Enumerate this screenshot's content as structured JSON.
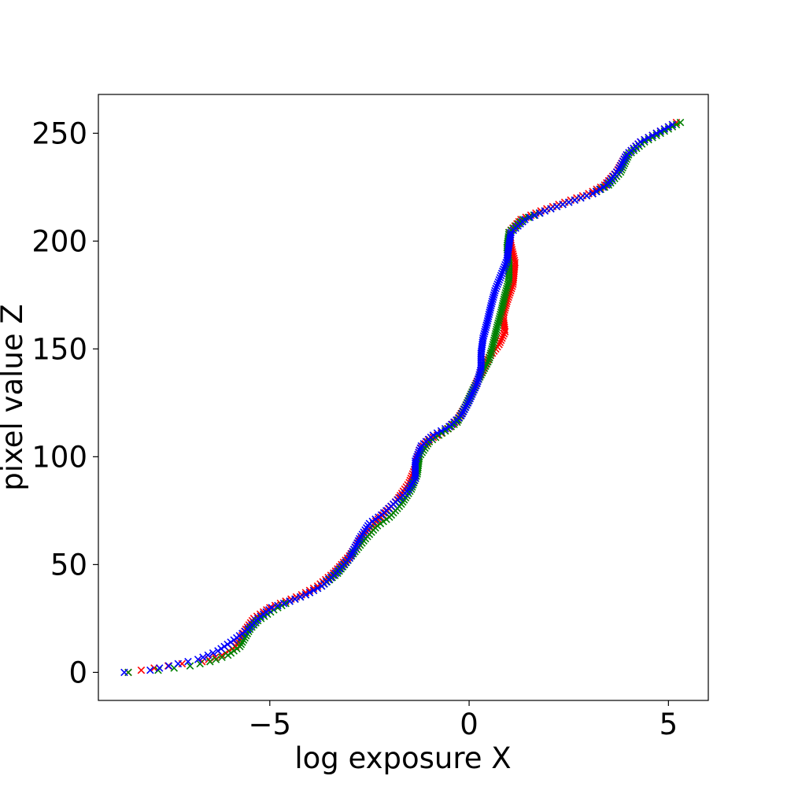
{
  "chart_data": {
    "type": "scatter",
    "title": "",
    "xlabel": "log exposure X",
    "ylabel": "pixel value Z",
    "xlim": [
      -9.3,
      6.0
    ],
    "ylim": [
      -13,
      268
    ],
    "xticks": [
      {
        "value": -5,
        "label": "−5"
      },
      {
        "value": 0,
        "label": "0"
      },
      {
        "value": 5,
        "label": "5"
      }
    ],
    "yticks": [
      {
        "value": 0,
        "label": "0"
      },
      {
        "value": 50,
        "label": "50"
      },
      {
        "value": 100,
        "label": "100"
      },
      {
        "value": 150,
        "label": "150"
      },
      {
        "value": 200,
        "label": "200"
      },
      {
        "value": 250,
        "label": "250"
      }
    ],
    "grid": false,
    "marker": "x",
    "series": [
      {
        "color": "#ff0000",
        "points": [
          [
            -8.55,
            0
          ],
          [
            -7.9,
            2
          ],
          [
            -7.2,
            4
          ],
          [
            -6.7,
            5
          ],
          [
            -6.2,
            8
          ],
          [
            -5.85,
            12
          ],
          [
            -5.6,
            20
          ],
          [
            -5.4,
            25
          ],
          [
            -5.0,
            30
          ],
          [
            -4.6,
            33
          ],
          [
            -4.2,
            36
          ],
          [
            -3.8,
            40
          ],
          [
            -3.4,
            46
          ],
          [
            -3.0,
            54
          ],
          [
            -2.7,
            62
          ],
          [
            -2.4,
            69
          ],
          [
            -2.1,
            74
          ],
          [
            -1.8,
            80
          ],
          [
            -1.5,
            88
          ],
          [
            -1.35,
            95
          ],
          [
            -1.25,
            103
          ],
          [
            -1.0,
            108
          ],
          [
            -0.6,
            112
          ],
          [
            -0.3,
            117
          ],
          [
            -0.1,
            123
          ],
          [
            0.1,
            131
          ],
          [
            0.3,
            139
          ],
          [
            0.5,
            146
          ],
          [
            0.75,
            152
          ],
          [
            0.9,
            158
          ],
          [
            0.85,
            165
          ],
          [
            0.95,
            172
          ],
          [
            1.1,
            180
          ],
          [
            1.15,
            190
          ],
          [
            1.05,
            198
          ],
          [
            1.0,
            204
          ],
          [
            1.3,
            210
          ],
          [
            1.8,
            214
          ],
          [
            2.4,
            218
          ],
          [
            3.0,
            222
          ],
          [
            3.4,
            226
          ],
          [
            3.7,
            232
          ],
          [
            3.95,
            240
          ],
          [
            4.3,
            246
          ],
          [
            4.7,
            250
          ],
          [
            5.2,
            255
          ]
        ]
      },
      {
        "color": "#008000",
        "points": [
          [
            -8.55,
            0
          ],
          [
            -7.8,
            1
          ],
          [
            -7.0,
            3
          ],
          [
            -6.5,
            5
          ],
          [
            -6.05,
            8
          ],
          [
            -5.75,
            12
          ],
          [
            -5.5,
            20
          ],
          [
            -5.3,
            24
          ],
          [
            -4.9,
            29
          ],
          [
            -4.5,
            33
          ],
          [
            -4.1,
            36
          ],
          [
            -3.7,
            40
          ],
          [
            -3.3,
            46
          ],
          [
            -2.95,
            54
          ],
          [
            -2.6,
            62
          ],
          [
            -2.3,
            68
          ],
          [
            -2.0,
            72
          ],
          [
            -1.7,
            78
          ],
          [
            -1.45,
            85
          ],
          [
            -1.3,
            92
          ],
          [
            -1.25,
            100
          ],
          [
            -1.0,
            107
          ],
          [
            -0.6,
            112
          ],
          [
            -0.3,
            116
          ],
          [
            -0.1,
            123
          ],
          [
            0.1,
            131
          ],
          [
            0.3,
            138
          ],
          [
            0.5,
            145
          ],
          [
            0.6,
            152
          ],
          [
            0.7,
            160
          ],
          [
            0.8,
            167
          ],
          [
            0.9,
            175
          ],
          [
            1.0,
            182
          ],
          [
            1.0,
            190
          ],
          [
            0.95,
            197
          ],
          [
            1.0,
            204
          ],
          [
            1.35,
            210
          ],
          [
            1.9,
            214
          ],
          [
            2.5,
            218
          ],
          [
            3.1,
            222
          ],
          [
            3.5,
            226
          ],
          [
            3.8,
            232
          ],
          [
            4.0,
            240
          ],
          [
            4.4,
            246
          ],
          [
            4.8,
            250
          ],
          [
            5.3,
            255
          ]
        ]
      },
      {
        "color": "#0000ff",
        "points": [
          [
            -8.65,
            0
          ],
          [
            -8.0,
            1
          ],
          [
            -7.3,
            4
          ],
          [
            -6.8,
            6
          ],
          [
            -6.3,
            10
          ],
          [
            -5.9,
            15
          ],
          [
            -5.55,
            20
          ],
          [
            -5.3,
            25
          ],
          [
            -4.95,
            30
          ],
          [
            -4.5,
            33
          ],
          [
            -4.1,
            36
          ],
          [
            -3.7,
            40
          ],
          [
            -3.35,
            46
          ],
          [
            -3.0,
            53
          ],
          [
            -2.75,
            62
          ],
          [
            -2.5,
            69
          ],
          [
            -2.2,
            73
          ],
          [
            -1.9,
            78
          ],
          [
            -1.55,
            84
          ],
          [
            -1.35,
            90
          ],
          [
            -1.35,
            98
          ],
          [
            -1.2,
            105
          ],
          [
            -0.9,
            110
          ],
          [
            -0.5,
            114
          ],
          [
            -0.2,
            119
          ],
          [
            0.0,
            126
          ],
          [
            0.2,
            134
          ],
          [
            0.3,
            141
          ],
          [
            0.3,
            148
          ],
          [
            0.35,
            155
          ],
          [
            0.45,
            162
          ],
          [
            0.55,
            170
          ],
          [
            0.65,
            177
          ],
          [
            0.8,
            184
          ],
          [
            0.95,
            191
          ],
          [
            1.0,
            198
          ],
          [
            1.05,
            204
          ],
          [
            1.4,
            210
          ],
          [
            1.9,
            214
          ],
          [
            2.5,
            218
          ],
          [
            3.1,
            222
          ],
          [
            3.45,
            226
          ],
          [
            3.75,
            233
          ],
          [
            3.95,
            240
          ],
          [
            4.3,
            246
          ],
          [
            4.7,
            250
          ],
          [
            5.1,
            254
          ]
        ]
      }
    ]
  }
}
